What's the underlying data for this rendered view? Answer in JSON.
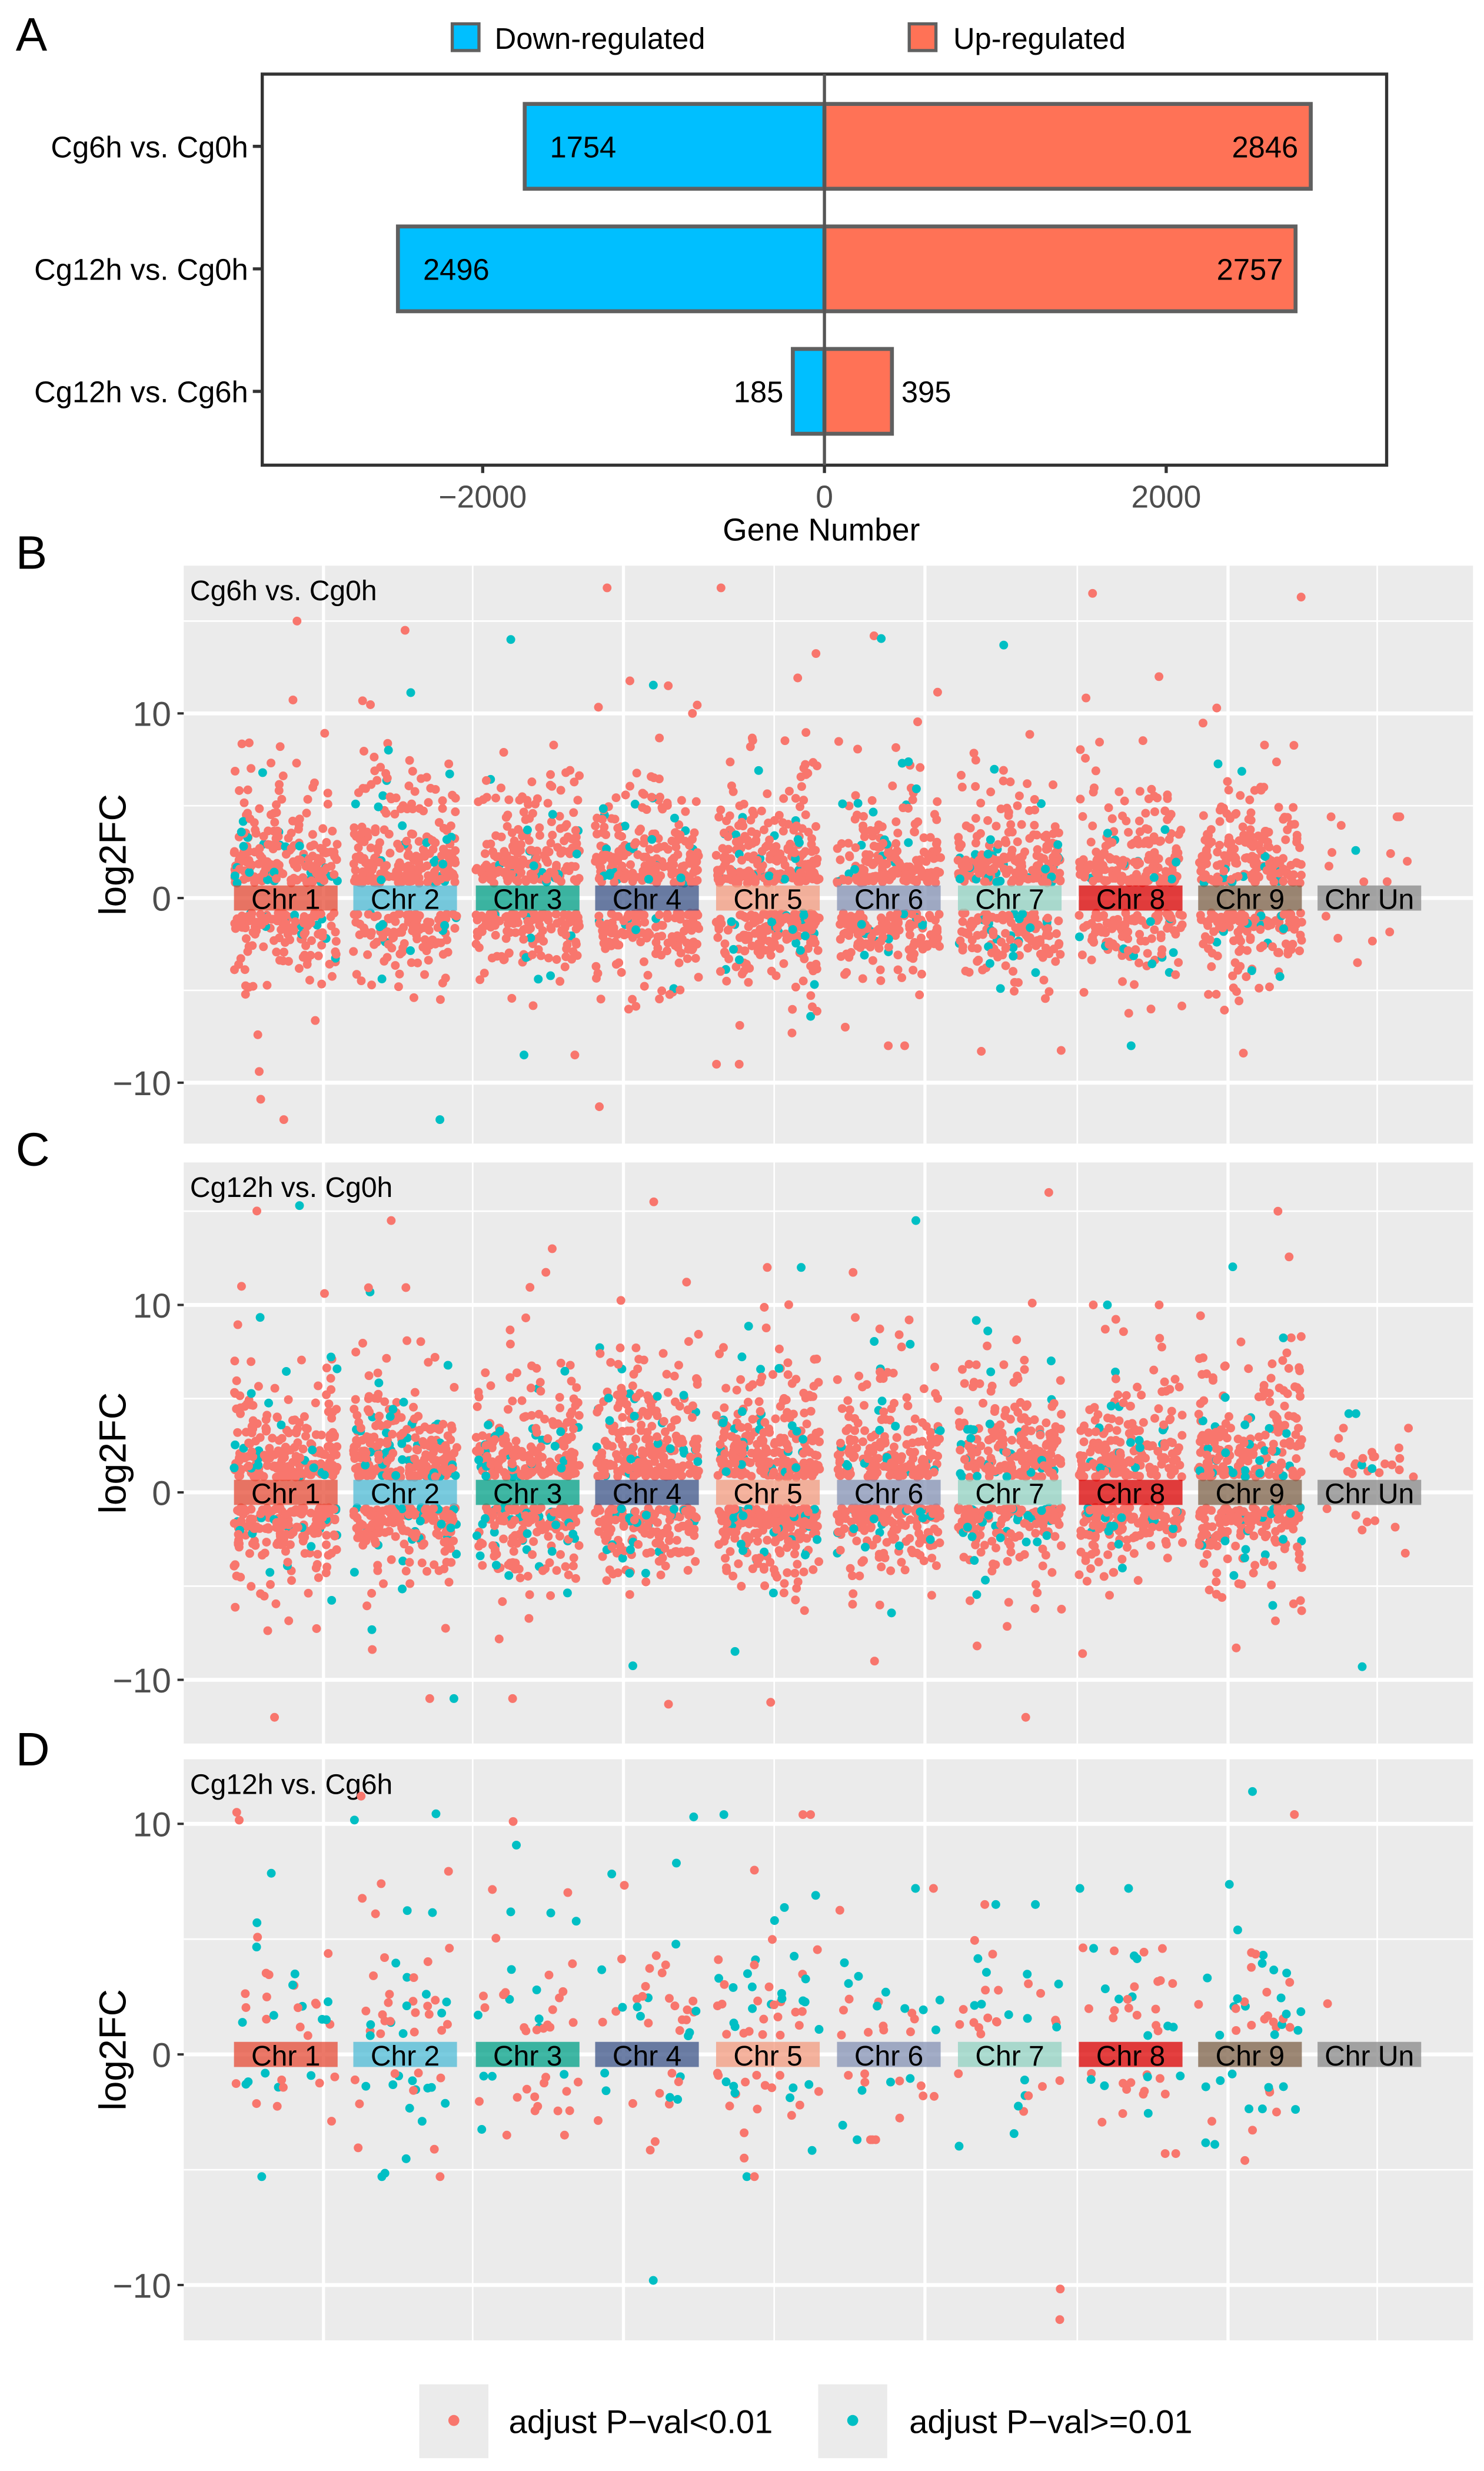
{
  "panel_letters": [
    "A",
    "B",
    "C",
    "D"
  ],
  "colors": {
    "down": "#00BFFF",
    "up": "#FF7256",
    "bar_border": "#606060",
    "sig": "#F8766D",
    "nonsig": "#00BFC4",
    "panel_bg": "#EBEBEB",
    "chr": [
      "#E64B35",
      "#4DBBD5",
      "#00A087",
      "#3C5488",
      "#F39B7F",
      "#8491B4",
      "#91D1C2",
      "#DC0000",
      "#7E6148",
      "#888888"
    ]
  },
  "legend_bottom": {
    "sig_label": "adjust P−val<0.01",
    "nonsig_label": "adjust P−val>=0.01"
  },
  "chart_data": [
    {
      "type": "bar",
      "orientation": "horizontal-diverging",
      "categories": [
        "Cg6h vs. Cg0h",
        "Cg12h vs. Cg0h",
        "Cg12h vs. Cg6h"
      ],
      "series": [
        {
          "name": "Down-regulated",
          "values": [
            -1754,
            -2496,
            -185
          ],
          "labels": [
            "1754",
            "2496",
            "185"
          ]
        },
        {
          "name": "Up-regulated",
          "values": [
            2846,
            2757,
            395
          ],
          "labels": [
            "2846",
            "2757",
            "395"
          ]
        }
      ],
      "xlabel": "Gene Number",
      "xticks": [
        -2000,
        0,
        2000
      ],
      "xtick_labels": [
        "−2000",
        "0",
        "2000"
      ],
      "xlim": [
        -3290,
        3290
      ],
      "legend": "top"
    },
    {
      "type": "scatter",
      "title": "Cg6h vs. Cg0h",
      "ylabel": "log2FC",
      "ylim": [
        -13.3,
        18
      ],
      "yticks": [
        -10,
        0,
        10
      ],
      "ytick_labels": [
        "−10",
        "0",
        "10"
      ],
      "categories": [
        "Chr 1",
        "Chr 2",
        "Chr 3",
        "Chr 4",
        "Chr 5",
        "Chr 6",
        "Chr 7",
        "Chr 8",
        "Chr 9",
        "Chr Un"
      ],
      "counts_up": [
        200,
        230,
        190,
        210,
        230,
        180,
        200,
        170,
        190,
        12
      ],
      "counts_down": [
        130,
        120,
        140,
        130,
        180,
        150,
        140,
        110,
        130,
        5
      ],
      "nonsig_fraction": 0.1,
      "max_abs": [
        [
          15,
          12
        ],
        [
          14.5,
          12
        ],
        [
          14,
          8.5
        ],
        [
          16.8,
          11.3
        ],
        [
          16.8,
          9
        ],
        [
          14.2,
          8
        ],
        [
          13.7,
          8.3
        ],
        [
          16.5,
          8
        ],
        [
          16.3,
          8.4
        ],
        [
          4.4,
          3.5
        ]
      ],
      "seed": 11
    },
    {
      "type": "scatter",
      "title": "Cg12h vs. Cg0h",
      "ylabel": "log2FC",
      "ylim": [
        -13.4,
        17.6
      ],
      "yticks": [
        -10,
        0,
        10
      ],
      "ytick_labels": [
        "−10",
        "0",
        "10"
      ],
      "categories": [
        "Chr 1",
        "Chr 2",
        "Chr 3",
        "Chr 4",
        "Chr 5",
        "Chr 6",
        "Chr 7",
        "Chr 8",
        "Chr 9",
        "Chr Un"
      ],
      "counts_up": [
        220,
        250,
        200,
        230,
        250,
        190,
        210,
        180,
        200,
        25
      ],
      "counts_down": [
        180,
        170,
        170,
        160,
        220,
        170,
        160,
        150,
        160,
        8
      ],
      "nonsig_fraction": 0.12,
      "max_abs": [
        [
          15.3,
          12
        ],
        [
          14.5,
          11
        ],
        [
          13,
          11
        ],
        [
          15.5,
          11.3
        ],
        [
          12,
          11.2
        ],
        [
          14.5,
          9
        ],
        [
          16,
          12
        ],
        [
          10,
          8.6
        ],
        [
          15,
          8.3
        ],
        [
          4.2,
          9.3
        ]
      ],
      "seed": 23
    },
    {
      "type": "scatter",
      "title": "Cg12h vs. Cg6h",
      "ylabel": "log2FC",
      "ylim": [
        -12.4,
        12.8
      ],
      "yticks": [
        -10,
        0,
        10
      ],
      "ytick_labels": [
        "−10",
        "0",
        "10"
      ],
      "categories": [
        "Chr 1",
        "Chr 2",
        "Chr 3",
        "Chr 4",
        "Chr 5",
        "Chr 6",
        "Chr 7",
        "Chr 8",
        "Chr 9",
        "Chr Un"
      ],
      "counts_up": [
        28,
        40,
        30,
        32,
        45,
        22,
        28,
        28,
        35,
        1
      ],
      "counts_down": [
        14,
        22,
        18,
        14,
        24,
        16,
        12,
        18,
        16,
        0
      ],
      "nonsig_fraction": 0.4,
      "max_abs": [
        [
          10.5,
          5.3
        ],
        [
          11.2,
          5.3
        ],
        [
          10.1,
          3.5
        ],
        [
          10.3,
          9.8
        ],
        [
          10.4,
          5.3
        ],
        [
          7.2,
          3.7
        ],
        [
          6.5,
          11.5
        ],
        [
          7.2,
          4.3
        ],
        [
          11.4,
          4.6
        ],
        [
          2.2,
          0
        ]
      ],
      "seed": 37
    }
  ]
}
